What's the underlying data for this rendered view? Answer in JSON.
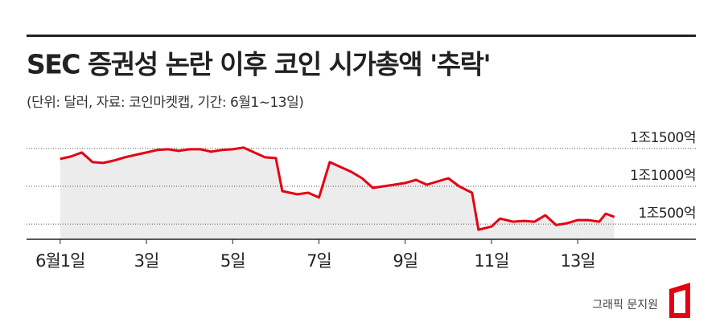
{
  "chart_data": {
    "type": "area-line",
    "title": "SEC 증권성 논란 이후 코인 시가총액 '추락'",
    "subtitle": "(단위: 달러, 자료: 코인마켓캡, 기간: 6월1~13일)",
    "credit": "그래픽 문지원",
    "x": [
      1,
      1.25,
      1.5,
      1.75,
      2,
      2.25,
      2.5,
      2.75,
      3,
      3.25,
      3.5,
      3.75,
      4,
      4.25,
      4.5,
      4.75,
      5,
      5.25,
      5.5,
      5.75,
      6,
      6.15,
      6.5,
      6.75,
      7,
      7.25,
      7.5,
      7.75,
      8,
      8.25,
      8.5,
      8.75,
      9,
      9.25,
      9.5,
      9.75,
      10,
      10.25,
      10.4,
      10.55,
      10.7,
      11,
      11.2,
      11.5,
      11.75,
      12,
      12.25,
      12.5,
      12.75,
      13,
      13.25,
      13.5,
      13.65,
      13.85
    ],
    "series": [
      {
        "name": "시가총액",
        "color": "#e60012",
        "values": [
          11362,
          11394,
          11447,
          11319,
          11309,
          11340,
          11383,
          11415,
          11447,
          11479,
          11489,
          11468,
          11489,
          11489,
          11457,
          11479,
          11489,
          11511,
          11447,
          11383,
          11372,
          10936,
          10894,
          10915,
          10851,
          11319,
          11255,
          11191,
          11106,
          10979,
          11000,
          11021,
          11043,
          11085,
          11021,
          11064,
          11106,
          11000,
          10957,
          10915,
          10426,
          10468,
          10574,
          10532,
          10543,
          10532,
          10617,
          10489,
          10511,
          10553,
          10553,
          10532,
          10638,
          10596
        ]
      }
    ],
    "fill_color": "#ececec",
    "xlim": [
      0.22,
      15.74
    ],
    "xticks": [
      {
        "value": 1,
        "label": "6월1일"
      },
      {
        "value": 3,
        "label": "3일"
      },
      {
        "value": 5,
        "label": "5일"
      },
      {
        "value": 7,
        "label": "7일"
      },
      {
        "value": 9,
        "label": "9일"
      },
      {
        "value": 11,
        "label": "11일"
      },
      {
        "value": 13,
        "label": "13일"
      }
    ],
    "ylim": [
      10300,
      11700
    ],
    "yticks": [
      {
        "value": 10500,
        "label": "1조500억"
      },
      {
        "value": 11000,
        "label": "1조1000억"
      },
      {
        "value": 11500,
        "label": "1조1500억"
      }
    ],
    "grid": true
  }
}
